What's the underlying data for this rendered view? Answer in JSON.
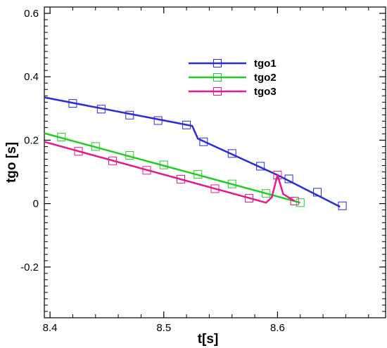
{
  "chart_data": {
    "type": "line",
    "title": "",
    "xlabel": "t[s]",
    "ylabel": "tgo [s]",
    "xlim": [
      8.395,
      8.695
    ],
    "ylim": [
      -0.36,
      0.62
    ],
    "x_ticks": [
      8.4,
      8.5,
      8.6
    ],
    "x_tick_labels": [
      "8.4",
      "8.5",
      "8.6"
    ],
    "y_ticks": [
      -0.2,
      0,
      0.2,
      0.4,
      0.6
    ],
    "y_tick_labels": [
      "-0.2",
      "0",
      "0.2",
      "0.4",
      "0.6"
    ],
    "grid": false,
    "legend_position": "top-center",
    "series": [
      {
        "name": "tgo1",
        "color": "#2b2bdc",
        "marker": "square",
        "line": [
          [
            8.395,
            0.335
          ],
          [
            8.525,
            0.245
          ],
          [
            8.53,
            0.205
          ],
          [
            8.6,
            0.09
          ],
          [
            8.655,
            -0.01
          ]
        ],
        "markers": [
          [
            8.42,
            0.316
          ],
          [
            8.445,
            0.298
          ],
          [
            8.47,
            0.279
          ],
          [
            8.495,
            0.262
          ],
          [
            8.52,
            0.248
          ],
          [
            8.535,
            0.195
          ],
          [
            8.56,
            0.158
          ],
          [
            8.585,
            0.118
          ],
          [
            8.61,
            0.078
          ],
          [
            8.635,
            0.036
          ],
          [
            8.657,
            -0.007
          ]
        ]
      },
      {
        "name": "tgo2",
        "color": "#22cc22",
        "marker": "square",
        "line": [
          [
            8.395,
            0.222
          ],
          [
            8.62,
            0.003
          ]
        ],
        "markers": [
          [
            8.41,
            0.21
          ],
          [
            8.44,
            0.18
          ],
          [
            8.47,
            0.152
          ],
          [
            8.5,
            0.122
          ],
          [
            8.53,
            0.092
          ],
          [
            8.56,
            0.062
          ],
          [
            8.59,
            0.032
          ],
          [
            8.62,
            0.003
          ]
        ]
      },
      {
        "name": "tgo3",
        "color": "#e6198c",
        "marker": "square",
        "line": [
          [
            8.395,
            0.195
          ],
          [
            8.59,
            0.003
          ],
          [
            8.595,
            0.02
          ],
          [
            8.6,
            0.09
          ],
          [
            8.605,
            0.03
          ],
          [
            8.615,
            0.008
          ]
        ],
        "markers": [
          [
            8.425,
            0.165
          ],
          [
            8.455,
            0.135
          ],
          [
            8.485,
            0.105
          ],
          [
            8.515,
            0.077
          ],
          [
            8.545,
            0.047
          ],
          [
            8.575,
            0.017
          ],
          [
            8.6,
            0.09
          ],
          [
            8.615,
            0.008
          ]
        ]
      }
    ]
  }
}
